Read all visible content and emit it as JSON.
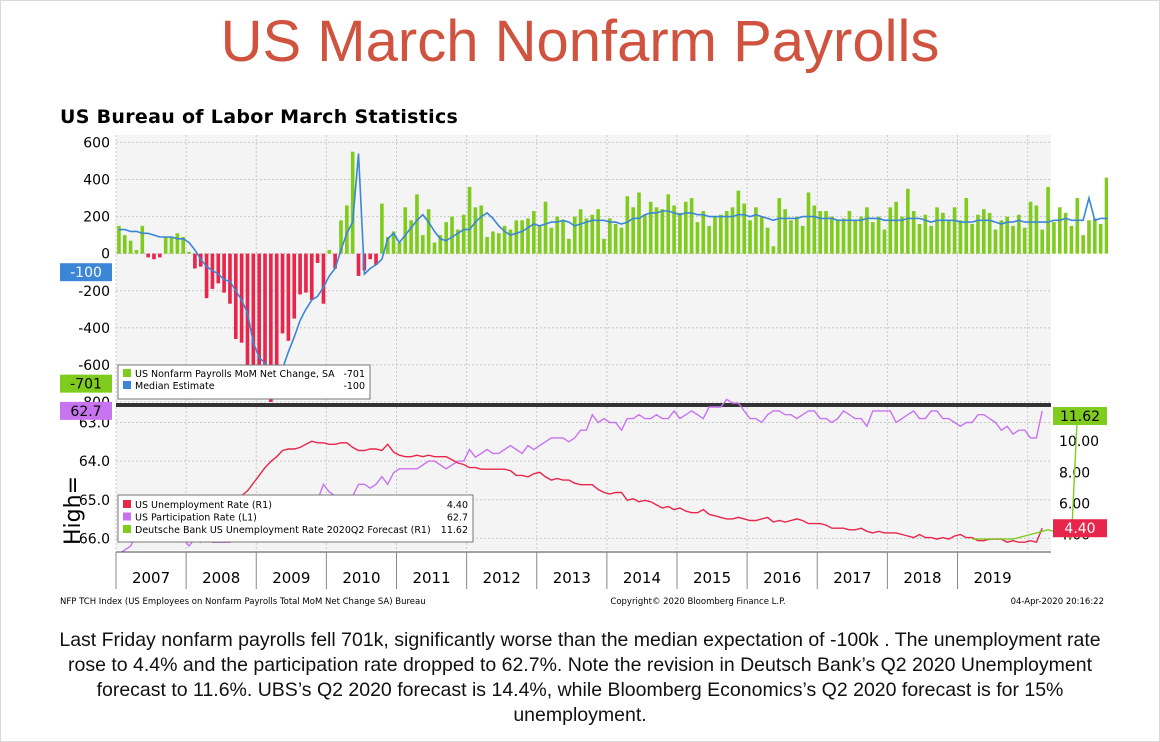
{
  "slide": {
    "title": "US March Nonfarm Payrolls",
    "caption": "Last Friday nonfarm payrolls fell 701k, significantly worse than the median expectation of -100k . The unemployment rate rose to 4.4% and the participation rate dropped to 62.7%. Note the revision in Deutsch Bank’s Q2 2020 Unemployment forecast to 11.6%. UBS’s Q2 2020 forecast is 14.4%, while Bloomberg Economics’s Q2 2020 forecast is for 15% unemployment."
  },
  "chart_header": {
    "title": "US Bureau of Labor March Statistics",
    "footer_left": "NFP TCH Index (US Employees on Nonfarm Payrolls Total MoM Net Change SA) Bureau",
    "footer_center": "Copyright© 2020 Bloomberg Finance L.P.",
    "footer_right": "04-Apr-2020 20:16:22",
    "overlay_text": "High="
  },
  "colors": {
    "green": "#7fcc1e",
    "red": "#e8254a",
    "blue": "#3b86d6",
    "purple": "#c873f0",
    "gridline": "#c8c8c8",
    "plot_bg": "#f4f4f4"
  },
  "chart_data": [
    {
      "type": "bar",
      "panel": "top",
      "ylim": [
        -800,
        600
      ],
      "yticks": [
        "600",
        "400",
        "200",
        "0",
        "-200",
        "-400",
        "-600",
        "-800"
      ],
      "x_start": "2007-01",
      "series": [
        {
          "name": "US Nonfarm Payrolls MoM Net Change, SA",
          "last_value": "-701",
          "values": [
            150,
            100,
            70,
            20,
            150,
            -20,
            -30,
            -20,
            90,
            90,
            110,
            90,
            10,
            -80,
            -70,
            -240,
            -190,
            -160,
            -210,
            -270,
            -460,
            -480,
            -780,
            -760,
            -780,
            -740,
            -800,
            -700,
            -430,
            -470,
            -350,
            -220,
            -210,
            -250,
            -50,
            -270,
            20,
            -80,
            180,
            260,
            550,
            -120,
            -90,
            -30,
            -60,
            270,
            90,
            120,
            60,
            250,
            180,
            320,
            100,
            240,
            60,
            100,
            170,
            200,
            130,
            210,
            360,
            250,
            260,
            90,
            120,
            110,
            150,
            130,
            180,
            180,
            190,
            230,
            150,
            280,
            140,
            200,
            180,
            80,
            200,
            240,
            190,
            210,
            240,
            80,
            190,
            160,
            140,
            310,
            250,
            330,
            210,
            280,
            250,
            240,
            320,
            260,
            220,
            280,
            300,
            170,
            230,
            150,
            200,
            210,
            230,
            250,
            340,
            270,
            180,
            250,
            200,
            140,
            40,
            300,
            240,
            180,
            200,
            150,
            330,
            260,
            230,
            230,
            200,
            180,
            190,
            230,
            180,
            200,
            250,
            170,
            200,
            130,
            250,
            280,
            200,
            350,
            230,
            160,
            210,
            150,
            250,
            220,
            180,
            250,
            180,
            300,
            160,
            210,
            240,
            220,
            130,
            180,
            200,
            150,
            210,
            140,
            280,
            260,
            130,
            360,
            170,
            250,
            220,
            150,
            300,
            100,
            180,
            190,
            160,
            410,
            140,
            210,
            200,
            170,
            180,
            200,
            200,
            220,
            190,
            180,
            280,
            230,
            130,
            250,
            140,
            200,
            160,
            210,
            180,
            200,
            220,
            180,
            260,
            200,
            210,
            200,
            180,
            200,
            190,
            200,
            270,
            30,
            -701
          ]
        },
        {
          "name": "Median Estimate",
          "last_value": "-100",
          "values": [
            130,
            130,
            120,
            120,
            110,
            110,
            100,
            90,
            90,
            90,
            80,
            80,
            60,
            20,
            -30,
            -70,
            -90,
            -110,
            -140,
            -150,
            -200,
            -250,
            -320,
            -480,
            -560,
            -590,
            -650,
            -670,
            -620,
            -530,
            -450,
            -360,
            -300,
            -250,
            -230,
            -180,
            -120,
            -80,
            20,
            110,
            170,
            540,
            -110,
            -80,
            -60,
            -30,
            80,
            110,
            60,
            100,
            140,
            180,
            210,
            170,
            120,
            80,
            70,
            90,
            110,
            130,
            130,
            170,
            200,
            220,
            190,
            150,
            120,
            100,
            110,
            120,
            140,
            160,
            150,
            160,
            170,
            170,
            180,
            170,
            150,
            160,
            170,
            180,
            180,
            180,
            170,
            170,
            160,
            170,
            190,
            190,
            210,
            220,
            220,
            230,
            230,
            220,
            210,
            220,
            220,
            210,
            210,
            200,
            200,
            200,
            200,
            200,
            210,
            210,
            200,
            210,
            200,
            190,
            180,
            190,
            190,
            190,
            190,
            200,
            200,
            200,
            190,
            190,
            190,
            180,
            180,
            180,
            180,
            180,
            190,
            190,
            190,
            180,
            180,
            180,
            180,
            190,
            190,
            190,
            180,
            170,
            180,
            180,
            180,
            180,
            170,
            170,
            170,
            180,
            180,
            180,
            170,
            160,
            170,
            170,
            180,
            170,
            170,
            170,
            170,
            170,
            180,
            180,
            190,
            180,
            180,
            180,
            300,
            180,
            190,
            190,
            190,
            190,
            180,
            180,
            180,
            180,
            180,
            190,
            190,
            180,
            180,
            180,
            180,
            180,
            180,
            170,
            170,
            170,
            170,
            170,
            170,
            170,
            170,
            170,
            170,
            170,
            170,
            170,
            160,
            160,
            160,
            160,
            150,
            -100
          ]
        }
      ]
    },
    {
      "type": "line",
      "panel": "bottom",
      "left_axis": {
        "label": "US Participation Rate (L1)",
        "inverted": true,
        "ticks": [
          "63.0",
          "64.0",
          "65.0",
          "66.0"
        ],
        "range": [
          62.7,
          66.3
        ]
      },
      "right_axis": {
        "label": "Unemployment (R1)",
        "ticks": [
          "10.00",
          "8.00",
          "6.00",
          "4.00"
        ],
        "range": [
          3.0,
          12.0
        ]
      },
      "x_start": "2007-01",
      "series": [
        {
          "name": "US Unemployment Rate (R1)",
          "axis": "right",
          "last_value": "4.40",
          "values": [
            4.6,
            4.5,
            4.4,
            4.5,
            4.4,
            4.6,
            4.7,
            4.6,
            4.7,
            4.7,
            4.7,
            5.0,
            5.0,
            4.9,
            5.1,
            5.0,
            5.4,
            5.6,
            5.8,
            6.1,
            6.1,
            6.5,
            6.8,
            7.3,
            7.8,
            8.3,
            8.7,
            9.0,
            9.4,
            9.5,
            9.5,
            9.6,
            9.8,
            10.0,
            9.9,
            9.9,
            9.8,
            9.8,
            9.9,
            9.9,
            9.6,
            9.4,
            9.4,
            9.5,
            9.5,
            9.4,
            9.8,
            9.3,
            9.1,
            9.0,
            9.0,
            9.1,
            9.0,
            9.1,
            9.0,
            9.0,
            9.0,
            8.8,
            8.6,
            8.5,
            8.3,
            8.3,
            8.2,
            8.2,
            8.2,
            8.2,
            8.2,
            8.1,
            7.8,
            7.8,
            7.7,
            7.9,
            8.0,
            7.7,
            7.5,
            7.6,
            7.5,
            7.5,
            7.3,
            7.2,
            7.2,
            7.2,
            6.9,
            6.7,
            6.6,
            6.7,
            6.7,
            6.2,
            6.3,
            6.1,
            6.2,
            6.1,
            5.9,
            5.7,
            5.8,
            5.6,
            5.7,
            5.5,
            5.4,
            5.4,
            5.6,
            5.3,
            5.2,
            5.1,
            5.0,
            5.0,
            5.1,
            5.0,
            4.9,
            4.9,
            5.0,
            5.1,
            4.8,
            4.9,
            4.8,
            4.9,
            5.0,
            4.9,
            4.7,
            4.7,
            4.7,
            4.6,
            4.4,
            4.4,
            4.4,
            4.3,
            4.3,
            4.4,
            4.2,
            4.1,
            4.2,
            4.1,
            4.1,
            4.1,
            4.0,
            3.9,
            3.8,
            4.0,
            3.8,
            3.8,
            3.7,
            3.8,
            3.7,
            3.9,
            4.0,
            3.8,
            3.8,
            3.6,
            3.6,
            3.7,
            3.7,
            3.7,
            3.5,
            3.6,
            3.5,
            3.5,
            3.6,
            3.5,
            4.4
          ]
        },
        {
          "name": "US Participation Rate (L1)",
          "axis": "left",
          "last_value": "62.7",
          "values": [
            66.4,
            66.3,
            66.2,
            65.9,
            66.0,
            66.0,
            66.0,
            65.8,
            66.0,
            65.8,
            66.0,
            66.0,
            66.2,
            66.0,
            66.1,
            65.9,
            66.1,
            66.1,
            66.1,
            66.1,
            66.0,
            66.0,
            65.9,
            65.8,
            65.7,
            65.8,
            65.6,
            65.7,
            65.7,
            65.7,
            65.5,
            65.4,
            65.1,
            65.0,
            65.0,
            64.6,
            64.8,
            64.9,
            64.9,
            65.2,
            64.9,
            64.6,
            64.6,
            64.7,
            64.6,
            64.4,
            64.6,
            64.3,
            64.2,
            64.2,
            64.2,
            64.2,
            64.1,
            64.0,
            64.0,
            64.1,
            64.2,
            64.1,
            64.0,
            64.0,
            63.7,
            63.9,
            63.8,
            63.7,
            63.8,
            63.8,
            63.7,
            63.6,
            63.7,
            63.8,
            63.6,
            63.7,
            63.6,
            63.5,
            63.4,
            63.4,
            63.4,
            63.5,
            63.4,
            63.2,
            63.2,
            62.8,
            63.0,
            62.9,
            63.0,
            63.0,
            63.2,
            62.9,
            62.9,
            62.8,
            62.9,
            62.9,
            62.8,
            62.9,
            62.9,
            62.7,
            62.9,
            62.8,
            62.7,
            62.8,
            62.9,
            62.6,
            62.6,
            62.6,
            62.4,
            62.5,
            62.5,
            62.7,
            62.9,
            62.9,
            63.0,
            62.8,
            62.7,
            62.7,
            62.8,
            62.8,
            62.9,
            62.8,
            62.7,
            62.7,
            62.9,
            62.9,
            63.0,
            62.9,
            62.7,
            62.8,
            62.9,
            62.9,
            63.1,
            62.7,
            62.7,
            62.7,
            62.7,
            63.0,
            62.9,
            62.8,
            62.7,
            62.9,
            62.9,
            62.7,
            62.7,
            62.9,
            62.9,
            63.0,
            63.1,
            63.0,
            63.0,
            62.8,
            62.8,
            62.9,
            63.0,
            63.2,
            63.1,
            63.3,
            63.2,
            63.2,
            63.4,
            63.4,
            62.7
          ]
        },
        {
          "name": "Deutsche Bank US Unemployment Rate 2020Q2 Forecast (R1)",
          "axis": "right",
          "last_value": "11.62",
          "start_index": 146,
          "values": [
            3.7,
            3.7,
            3.7,
            3.7,
            3.7,
            3.7,
            3.7,
            3.7,
            3.8,
            3.9,
            4.0,
            4.1,
            4.2,
            4.3,
            4.2,
            4.0,
            3.9,
            3.8,
            11.62
          ]
        }
      ],
      "left_tag": "62.7",
      "right_tags": [
        "11.62",
        "4.40"
      ]
    }
  ],
  "top_tags": [
    "-100",
    "-701"
  ],
  "legend_top": [
    {
      "label": "US Nonfarm Payrolls MoM Net Change, SA",
      "value": "-701",
      "color": "#7fcc1e"
    },
    {
      "label": "Median Estimate",
      "value": "-100",
      "color": "#3b86d6"
    }
  ],
  "legend_bottom": [
    {
      "label": "US Unemployment Rate  (R1)",
      "value": "4.40",
      "color": "#e8254a"
    },
    {
      "label": "US Participation Rate  (L1)",
      "value": "62.7",
      "color": "#c873f0"
    },
    {
      "label": "Deutsche Bank US Unemployment Rate 2020Q2 Forecast (R1)",
      "value": "11.62",
      "color": "#7fcc1e"
    }
  ],
  "years": [
    "2007",
    "2008",
    "2009",
    "2010",
    "2011",
    "2012",
    "2013",
    "2014",
    "2015",
    "2016",
    "2017",
    "2018",
    "2019"
  ]
}
